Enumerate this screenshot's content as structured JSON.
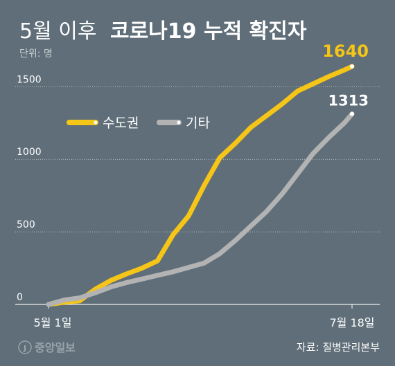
{
  "title_light": "5월 이후",
  "title_bold": "코로나19 누적 확진자",
  "unit": "단위: 명",
  "source": "자료: 질병관리본부",
  "watermark": "중앙일보",
  "chart_data": {
    "type": "line",
    "title": "5월 이후 코로나19 누적 확진자",
    "unit": "단위: 명",
    "x_start_label": "5월 1일",
    "x_end_label": "7월 18일",
    "ylim": [
      0,
      1640
    ],
    "yticks": [
      0,
      500,
      1000,
      1500
    ],
    "grid": true,
    "legend_position": "middle-left",
    "series": [
      {
        "name": "수도권",
        "color": "#f5c518",
        "end_label": "1640",
        "x": [
          "2020-05-01",
          "2020-05-05",
          "2020-05-09",
          "2020-05-13",
          "2020-05-17",
          "2020-05-21",
          "2020-05-25",
          "2020-05-29",
          "2020-06-02",
          "2020-06-06",
          "2020-06-10",
          "2020-06-14",
          "2020-06-18",
          "2020-06-22",
          "2020-06-26",
          "2020-06-30",
          "2020-07-04",
          "2020-07-08",
          "2020-07-12",
          "2020-07-16",
          "2020-07-18"
        ],
        "values": [
          0,
          15,
          25,
          105,
          165,
          210,
          250,
          300,
          480,
          610,
          820,
          1010,
          1110,
          1220,
          1300,
          1380,
          1470,
          1520,
          1570,
          1615,
          1640
        ]
      },
      {
        "name": "기타",
        "color": "#b3b3b3",
        "end_label": "1313",
        "x": [
          "2020-05-01",
          "2020-05-05",
          "2020-05-09",
          "2020-05-13",
          "2020-05-17",
          "2020-05-21",
          "2020-05-25",
          "2020-05-29",
          "2020-06-02",
          "2020-06-06",
          "2020-06-10",
          "2020-06-14",
          "2020-06-18",
          "2020-06-22",
          "2020-06-26",
          "2020-06-30",
          "2020-07-04",
          "2020-07-08",
          "2020-07-12",
          "2020-07-16",
          "2020-07-18"
        ],
        "values": [
          0,
          30,
          45,
          80,
          120,
          150,
          175,
          200,
          225,
          255,
          285,
          350,
          440,
          540,
          640,
          760,
          900,
          1040,
          1150,
          1250,
          1313
        ]
      }
    ]
  }
}
